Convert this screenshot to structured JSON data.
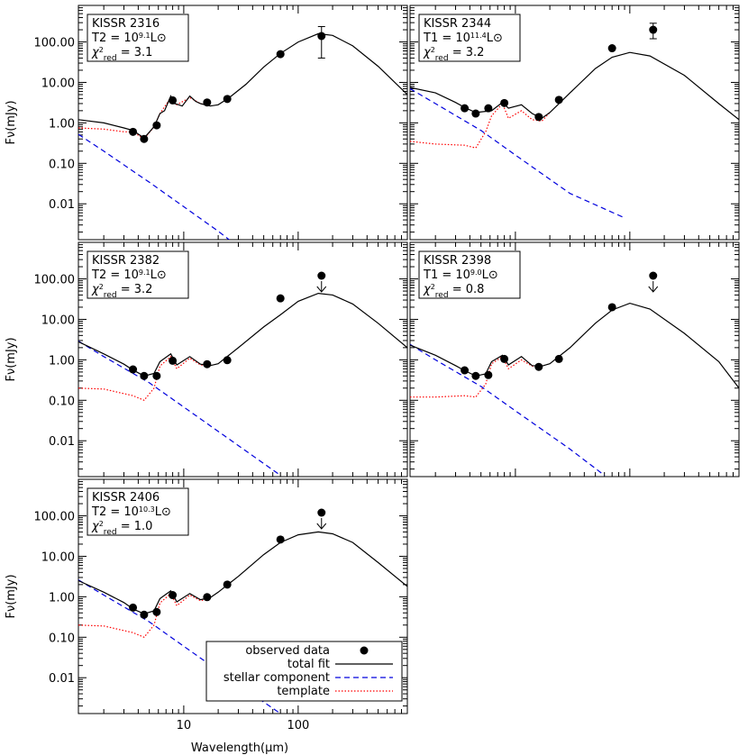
{
  "figure": {
    "x_axis_label": "Wavelength(μm)",
    "y_axis_label": "Fν(mJy)",
    "legend": [
      {
        "label": "observed data",
        "style": "point"
      },
      {
        "label": "total fit",
        "style": "solid"
      },
      {
        "label": "stellar component",
        "style": "dashed"
      },
      {
        "label": "template",
        "style": "dotted"
      }
    ],
    "colors": {
      "total": "#000000",
      "stellar": "#0000dd",
      "template": "#ff0000",
      "points": "#000000"
    }
  },
  "chart_data": [
    {
      "type": "line",
      "name": "KISSR 2316",
      "template_type": "T2",
      "luminosity_exp": "9.1",
      "chi2_red": "3.1",
      "x_scale": "log",
      "y_scale": "log",
      "xlim": [
        1.2,
        900
      ],
      "ylim": [
        0.0013,
        800
      ],
      "xticks": [
        10,
        100
      ],
      "yticks": [
        0.01,
        0.1,
        1,
        10,
        100
      ],
      "yticklabels": [
        "0.01",
        "0.10",
        "1.00",
        "10.00",
        "100.00"
      ],
      "observed": [
        {
          "x": 3.6,
          "y": 0.6
        },
        {
          "x": 4.5,
          "y": 0.4
        },
        {
          "x": 5.8,
          "y": 0.87
        },
        {
          "x": 8.0,
          "y": 3.6
        },
        {
          "x": 16,
          "y": 3.2
        },
        {
          "x": 24,
          "y": 3.9
        },
        {
          "x": 70,
          "y": 50
        },
        {
          "x": 160,
          "y": 140,
          "err": [
            40,
            240
          ]
        }
      ],
      "total_fit": [
        [
          1.2,
          1.2
        ],
        [
          2,
          1.0
        ],
        [
          3,
          0.75
        ],
        [
          3.6,
          0.65
        ],
        [
          4.5,
          0.42
        ],
        [
          5.5,
          0.8
        ],
        [
          6.2,
          1.7
        ],
        [
          6.8,
          2.0
        ],
        [
          7.7,
          4.6
        ],
        [
          8.3,
          3.0
        ],
        [
          8.7,
          2.9
        ],
        [
          9.7,
          2.6
        ],
        [
          11.3,
          4.6
        ],
        [
          12.7,
          3.4
        ],
        [
          14,
          3.0
        ],
        [
          17,
          2.6
        ],
        [
          20,
          2.8
        ],
        [
          25,
          4.2
        ],
        [
          35,
          9
        ],
        [
          50,
          24
        ],
        [
          70,
          52
        ],
        [
          100,
          100
        ],
        [
          150,
          160
        ],
        [
          200,
          145
        ],
        [
          300,
          80
        ],
        [
          500,
          25
        ],
        [
          900,
          5
        ]
      ],
      "stellar": [
        [
          1.2,
          0.52
        ],
        [
          2,
          0.2
        ],
        [
          5,
          0.034
        ],
        [
          10,
          0.0085
        ],
        [
          20,
          0.0021
        ],
        [
          28,
          0.001
        ]
      ],
      "template": [
        [
          1.2,
          0.75
        ],
        [
          2,
          0.7
        ],
        [
          3,
          0.6
        ],
        [
          3.6,
          0.6
        ],
        [
          4.5,
          0.4
        ],
        [
          5.5,
          0.8
        ],
        [
          6.2,
          1.7
        ],
        [
          7.7,
          4.2
        ],
        [
          8.7,
          2.8
        ],
        [
          11.3,
          4.2
        ],
        [
          14,
          3.0
        ],
        [
          17,
          2.6
        ]
      ]
    },
    {
      "type": "line",
      "name": "KISSR 2344",
      "template_type": "T1",
      "luminosity_exp": "11.4",
      "chi2_red": "3.2",
      "x_scale": "log",
      "y_scale": "log",
      "xlim": [
        1.2,
        900
      ],
      "ylim": [
        0.0013,
        800
      ],
      "xticks": [
        10,
        100
      ],
      "yticks": [
        0.01,
        0.1,
        1,
        10,
        100
      ],
      "yticklabels": [
        "0.01",
        "0.10",
        "1.00",
        "10.00",
        "100.00"
      ],
      "observed": [
        {
          "x": 3.6,
          "y": 2.3
        },
        {
          "x": 4.5,
          "y": 1.7
        },
        {
          "x": 5.8,
          "y": 2.3
        },
        {
          "x": 8.0,
          "y": 3.1
        },
        {
          "x": 16,
          "y": 1.4
        },
        {
          "x": 24,
          "y": 3.7
        },
        {
          "x": 70,
          "y": 70
        },
        {
          "x": 160,
          "y": 200,
          "err": [
            120,
            290
          ]
        }
      ],
      "total_fit": [
        [
          1.2,
          7.5
        ],
        [
          2,
          5.5
        ],
        [
          3,
          3.2
        ],
        [
          3.6,
          2.4
        ],
        [
          4.5,
          1.8
        ],
        [
          6.2,
          2.0
        ],
        [
          7.7,
          3.2
        ],
        [
          8.7,
          2.3
        ],
        [
          11.3,
          2.8
        ],
        [
          14,
          1.7
        ],
        [
          17,
          1.3
        ],
        [
          20,
          1.8
        ],
        [
          30,
          5.5
        ],
        [
          50,
          22
        ],
        [
          70,
          42
        ],
        [
          100,
          55
        ],
        [
          150,
          45
        ],
        [
          300,
          15
        ],
        [
          600,
          3
        ],
        [
          900,
          1.2
        ]
      ],
      "stellar": [
        [
          1.2,
          7.0
        ],
        [
          2,
          3.0
        ],
        [
          5,
          0.65
        ],
        [
          10,
          0.16
        ],
        [
          30,
          0.018
        ],
        [
          90,
          0.0045
        ]
      ],
      "template": [
        [
          1.2,
          0.35
        ],
        [
          2,
          0.3
        ],
        [
          3.6,
          0.28
        ],
        [
          4.5,
          0.24
        ],
        [
          5.5,
          0.6
        ],
        [
          6.2,
          1.5
        ],
        [
          7.7,
          3.0
        ],
        [
          8.7,
          1.3
        ],
        [
          11.3,
          2.0
        ],
        [
          14,
          1.2
        ],
        [
          17,
          1.1
        ],
        [
          20,
          1.8
        ]
      ]
    },
    {
      "type": "line",
      "name": "KISSR 2382",
      "template_type": "T2",
      "luminosity_exp": "9.1",
      "chi2_red": "3.2",
      "x_scale": "log",
      "y_scale": "log",
      "xlim": [
        1.2,
        900
      ],
      "ylim": [
        0.0013,
        800
      ],
      "xticks": [
        10,
        100
      ],
      "yticks": [
        0.01,
        0.1,
        1,
        10,
        100
      ],
      "yticklabels": [
        "0.01",
        "0.10",
        "1.00",
        "10.00",
        "100.00"
      ],
      "observed": [
        {
          "x": 3.6,
          "y": 0.58
        },
        {
          "x": 4.5,
          "y": 0.4
        },
        {
          "x": 5.8,
          "y": 0.4
        },
        {
          "x": 8.0,
          "y": 0.95
        },
        {
          "x": 16,
          "y": 0.78
        },
        {
          "x": 24,
          "y": 0.98
        },
        {
          "x": 70,
          "y": 33
        },
        {
          "x": 160,
          "y": 120,
          "upper": true
        }
      ],
      "total_fit": [
        [
          1.2,
          2.8
        ],
        [
          2,
          1.4
        ],
        [
          3,
          0.78
        ],
        [
          3.6,
          0.56
        ],
        [
          4.5,
          0.4
        ],
        [
          5.5,
          0.46
        ],
        [
          6.2,
          0.9
        ],
        [
          7.7,
          1.4
        ],
        [
          8.7,
          0.75
        ],
        [
          11.3,
          1.2
        ],
        [
          14,
          0.78
        ],
        [
          17,
          0.72
        ],
        [
          20,
          0.8
        ],
        [
          30,
          2.0
        ],
        [
          50,
          6.5
        ],
        [
          70,
          13
        ],
        [
          100,
          28
        ],
        [
          150,
          44
        ],
        [
          200,
          40
        ],
        [
          300,
          24
        ],
        [
          500,
          8
        ],
        [
          900,
          2
        ]
      ],
      "stellar": [
        [
          1.2,
          2.9
        ],
        [
          2,
          1.2
        ],
        [
          5,
          0.27
        ],
        [
          10,
          0.068
        ],
        [
          30,
          0.0076
        ],
        [
          70,
          0.0014
        ]
      ],
      "template": [
        [
          1.2,
          0.2
        ],
        [
          2,
          0.19
        ],
        [
          3.6,
          0.13
        ],
        [
          4.5,
          0.1
        ],
        [
          5.5,
          0.2
        ],
        [
          6.2,
          0.7
        ],
        [
          7.7,
          1.2
        ],
        [
          8.7,
          0.6
        ],
        [
          11.3,
          1.1
        ],
        [
          14,
          0.75
        ],
        [
          17,
          0.7
        ]
      ]
    },
    {
      "type": "line",
      "name": "KISSR 2398",
      "template_type": "T1",
      "luminosity_exp": "9.0",
      "chi2_red": "0.8",
      "x_scale": "log",
      "y_scale": "log",
      "xlim": [
        1.2,
        900
      ],
      "ylim": [
        0.0013,
        800
      ],
      "xticks": [
        10,
        100
      ],
      "yticks": [
        0.01,
        0.1,
        1,
        10,
        100
      ],
      "yticklabels": [
        "0.01",
        "0.10",
        "1.00",
        "10.00",
        "100.00"
      ],
      "observed": [
        {
          "x": 3.6,
          "y": 0.55
        },
        {
          "x": 4.5,
          "y": 0.4
        },
        {
          "x": 5.8,
          "y": 0.42
        },
        {
          "x": 8.0,
          "y": 1.05
        },
        {
          "x": 16,
          "y": 0.67
        },
        {
          "x": 24,
          "y": 1.05
        },
        {
          "x": 70,
          "y": 20
        },
        {
          "x": 160,
          "y": 120,
          "upper": true
        }
      ],
      "total_fit": [
        [
          1.2,
          2.3
        ],
        [
          2,
          1.3
        ],
        [
          3,
          0.72
        ],
        [
          3.6,
          0.54
        ],
        [
          4.5,
          0.4
        ],
        [
          5.5,
          0.45
        ],
        [
          6.2,
          0.9
        ],
        [
          7.7,
          1.3
        ],
        [
          8.7,
          0.75
        ],
        [
          11.3,
          1.2
        ],
        [
          14,
          0.72
        ],
        [
          17,
          0.7
        ],
        [
          20,
          0.8
        ],
        [
          30,
          2.0
        ],
        [
          50,
          8
        ],
        [
          70,
          17
        ],
        [
          100,
          25
        ],
        [
          150,
          18
        ],
        [
          300,
          4.5
        ],
        [
          600,
          0.9
        ],
        [
          900,
          0.2
        ]
      ],
      "stellar": [
        [
          1.2,
          2.4
        ],
        [
          2,
          1.0
        ],
        [
          5,
          0.22
        ],
        [
          10,
          0.055
        ],
        [
          30,
          0.0062
        ],
        [
          60,
          0.0014
        ]
      ],
      "template": [
        [
          1.2,
          0.12
        ],
        [
          2,
          0.12
        ],
        [
          3.6,
          0.13
        ],
        [
          4.5,
          0.12
        ],
        [
          5.5,
          0.25
        ],
        [
          6.2,
          0.8
        ],
        [
          7.7,
          1.2
        ],
        [
          8.7,
          0.6
        ],
        [
          11.3,
          1.0
        ],
        [
          14,
          0.7
        ],
        [
          17,
          0.68
        ]
      ]
    },
    {
      "type": "line",
      "name": "KISSR 2406",
      "template_type": "T2",
      "luminosity_exp": "10.3",
      "chi2_red": "1.0",
      "x_scale": "log",
      "y_scale": "log",
      "xlim": [
        1.2,
        900
      ],
      "ylim": [
        0.0013,
        800
      ],
      "xticks": [
        10,
        100
      ],
      "yticks": [
        0.01,
        0.1,
        1,
        10,
        100
      ],
      "yticklabels": [
        "0.01",
        "0.10",
        "1.00",
        "10.00",
        "100.00"
      ],
      "observed": [
        {
          "x": 3.6,
          "y": 0.54
        },
        {
          "x": 4.5,
          "y": 0.36
        },
        {
          "x": 5.8,
          "y": 0.42
        },
        {
          "x": 8.0,
          "y": 1.1
        },
        {
          "x": 16,
          "y": 0.98
        },
        {
          "x": 24,
          "y": 2.0
        },
        {
          "x": 70,
          "y": 26
        },
        {
          "x": 160,
          "y": 120,
          "upper": true
        }
      ],
      "total_fit": [
        [
          1.2,
          2.5
        ],
        [
          2,
          1.3
        ],
        [
          3,
          0.72
        ],
        [
          3.6,
          0.5
        ],
        [
          4.5,
          0.38
        ],
        [
          5.5,
          0.45
        ],
        [
          6.2,
          0.9
        ],
        [
          7.7,
          1.4
        ],
        [
          8.7,
          0.75
        ],
        [
          11.3,
          1.2
        ],
        [
          14,
          0.85
        ],
        [
          17,
          0.95
        ],
        [
          20,
          1.3
        ],
        [
          30,
          3.2
        ],
        [
          50,
          11
        ],
        [
          70,
          22
        ],
        [
          100,
          34
        ],
        [
          150,
          40
        ],
        [
          200,
          36
        ],
        [
          300,
          22
        ],
        [
          500,
          7
        ],
        [
          900,
          1.8
        ]
      ],
      "stellar": [
        [
          1.2,
          2.6
        ],
        [
          2,
          1.1
        ],
        [
          5,
          0.24
        ],
        [
          10,
          0.06
        ],
        [
          30,
          0.0067
        ],
        [
          70,
          0.0013
        ]
      ],
      "template": [
        [
          1.2,
          0.2
        ],
        [
          2,
          0.19
        ],
        [
          3.6,
          0.13
        ],
        [
          4.5,
          0.1
        ],
        [
          5.5,
          0.2
        ],
        [
          6.2,
          0.7
        ],
        [
          7.7,
          1.2
        ],
        [
          8.7,
          0.6
        ],
        [
          11.3,
          1.1
        ],
        [
          14,
          0.8
        ],
        [
          17,
          0.9
        ]
      ]
    }
  ]
}
